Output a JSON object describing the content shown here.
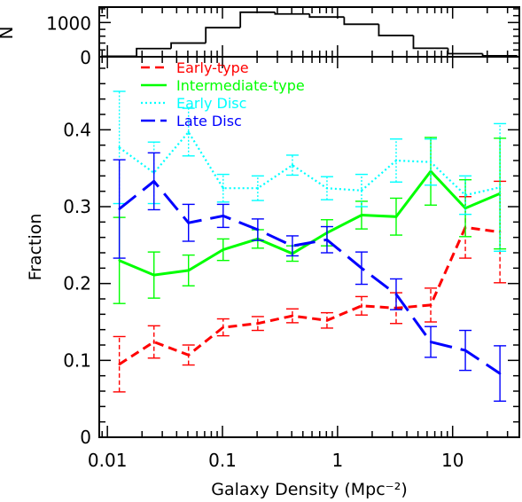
{
  "chart_data": [
    {
      "type": "histogram",
      "ylabel": "N",
      "y_ticks": [
        0,
        1000
      ],
      "ylim": [
        0,
        1450
      ],
      "x_scale": "log",
      "xlim": [
        0.0085,
        38
      ],
      "bin_edges": [
        0.00898,
        0.01794,
        0.0358,
        0.0716,
        0.143,
        0.2865,
        0.5715,
        1.1425,
        2.284,
        4.5645,
        9.123,
        18.236,
        36.45
      ],
      "counts": [
        15,
        240,
        400,
        850,
        1300,
        1250,
        1160,
        950,
        620,
        250,
        90,
        30
      ]
    },
    {
      "type": "line",
      "xlabel": "Galaxy Density (Mpc⁻²)",
      "ylabel": "Fraction",
      "x_scale": "log",
      "xlim": [
        0.0085,
        38
      ],
      "ylim": [
        0,
        0.495
      ],
      "x_ticks": [
        0.01,
        0.1,
        1,
        10
      ],
      "x_tick_labels": [
        "0.01",
        "0.1",
        "1",
        "10"
      ],
      "y_ticks": [
        0,
        0.1,
        0.2,
        0.3,
        0.4
      ],
      "y_tick_labels": [
        "0",
        "0.1",
        "0.2",
        "0.3",
        "0.4"
      ],
      "x": [
        0.0127,
        0.0254,
        0.0507,
        0.1014,
        0.2027,
        0.4052,
        0.8095,
        1.617,
        3.23,
        6.455,
        12.9,
        25.78
      ],
      "legend_position": "top-left",
      "series": [
        {
          "name": "Early-type",
          "color": "#ff0000",
          "dash": "dashed",
          "values": [
            0.095,
            0.124,
            0.107,
            0.143,
            0.148,
            0.158,
            0.152,
            0.171,
            0.168,
            0.172,
            0.273,
            0.267
          ],
          "err": [
            0.036,
            0.021,
            0.013,
            0.011,
            0.009,
            0.009,
            0.01,
            0.012,
            0.02,
            0.022,
            0.04,
            0.066
          ]
        },
        {
          "name": "Intermediate-type",
          "color": "#00ff00",
          "dash": "solid",
          "values": [
            0.23,
            0.211,
            0.217,
            0.244,
            0.258,
            0.239,
            0.266,
            0.289,
            0.287,
            0.346,
            0.298,
            0.317
          ],
          "err": [
            0.056,
            0.03,
            0.02,
            0.014,
            0.012,
            0.01,
            0.017,
            0.018,
            0.024,
            0.044,
            0.037,
            0.072
          ]
        },
        {
          "name": "Early Disc",
          "color": "#00ffff",
          "dash": "dotted",
          "values": [
            0.377,
            0.344,
            0.397,
            0.324,
            0.324,
            0.354,
            0.324,
            0.321,
            0.36,
            0.358,
            0.315,
            0.325
          ],
          "err": [
            0.073,
            0.04,
            0.031,
            0.018,
            0.016,
            0.013,
            0.015,
            0.021,
            0.028,
            0.03,
            0.025,
            0.083
          ]
        },
        {
          "name": "Late Disc",
          "color": "#0000ff",
          "dash": "long-dash",
          "values": [
            0.297,
            0.333,
            0.279,
            0.288,
            0.27,
            0.249,
            0.257,
            0.22,
            0.186,
            0.124,
            0.113,
            0.083
          ],
          "err": [
            0.064,
            0.037,
            0.024,
            0.015,
            0.014,
            0.013,
            0.017,
            0.021,
            0.02,
            0.02,
            0.026,
            0.036
          ]
        }
      ]
    }
  ]
}
